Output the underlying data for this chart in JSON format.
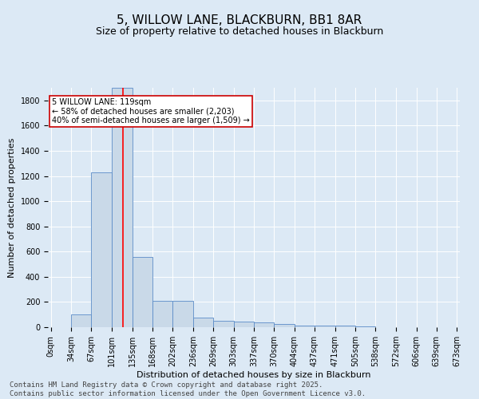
{
  "title": "5, WILLOW LANE, BLACKBURN, BB1 8AR",
  "subtitle": "Size of property relative to detached houses in Blackburn",
  "xlabel": "Distribution of detached houses by size in Blackburn",
  "ylabel": "Number of detached properties",
  "bin_edges": [
    0,
    34,
    67,
    101,
    135,
    168,
    202,
    236,
    269,
    303,
    337,
    370,
    404,
    437,
    471,
    505,
    538,
    572,
    606,
    639,
    673
  ],
  "bar_heights": [
    0,
    100,
    1230,
    1900,
    560,
    210,
    210,
    75,
    50,
    45,
    35,
    25,
    15,
    10,
    10,
    5,
    3,
    2,
    1,
    0
  ],
  "bar_color": "#c9d9e8",
  "bar_edge_color": "#5b8cc8",
  "red_line_x": 119,
  "annotation_text": "5 WILLOW LANE: 119sqm\n← 58% of detached houses are smaller (2,203)\n40% of semi-detached houses are larger (1,509) →",
  "annotation_box_color": "#ffffff",
  "annotation_box_edge_color": "#cc0000",
  "ylim": [
    0,
    1900
  ],
  "yticks": [
    0,
    200,
    400,
    600,
    800,
    1000,
    1200,
    1400,
    1600,
    1800
  ],
  "background_color": "#dce9f5",
  "plot_bg_color": "#dce9f5",
  "footer_text": "Contains HM Land Registry data © Crown copyright and database right 2025.\nContains public sector information licensed under the Open Government Licence v3.0.",
  "title_fontsize": 11,
  "subtitle_fontsize": 9,
  "tick_fontsize": 7,
  "ylabel_fontsize": 8,
  "xlabel_fontsize": 8,
  "annotation_fontsize": 7,
  "footer_fontsize": 6.5
}
